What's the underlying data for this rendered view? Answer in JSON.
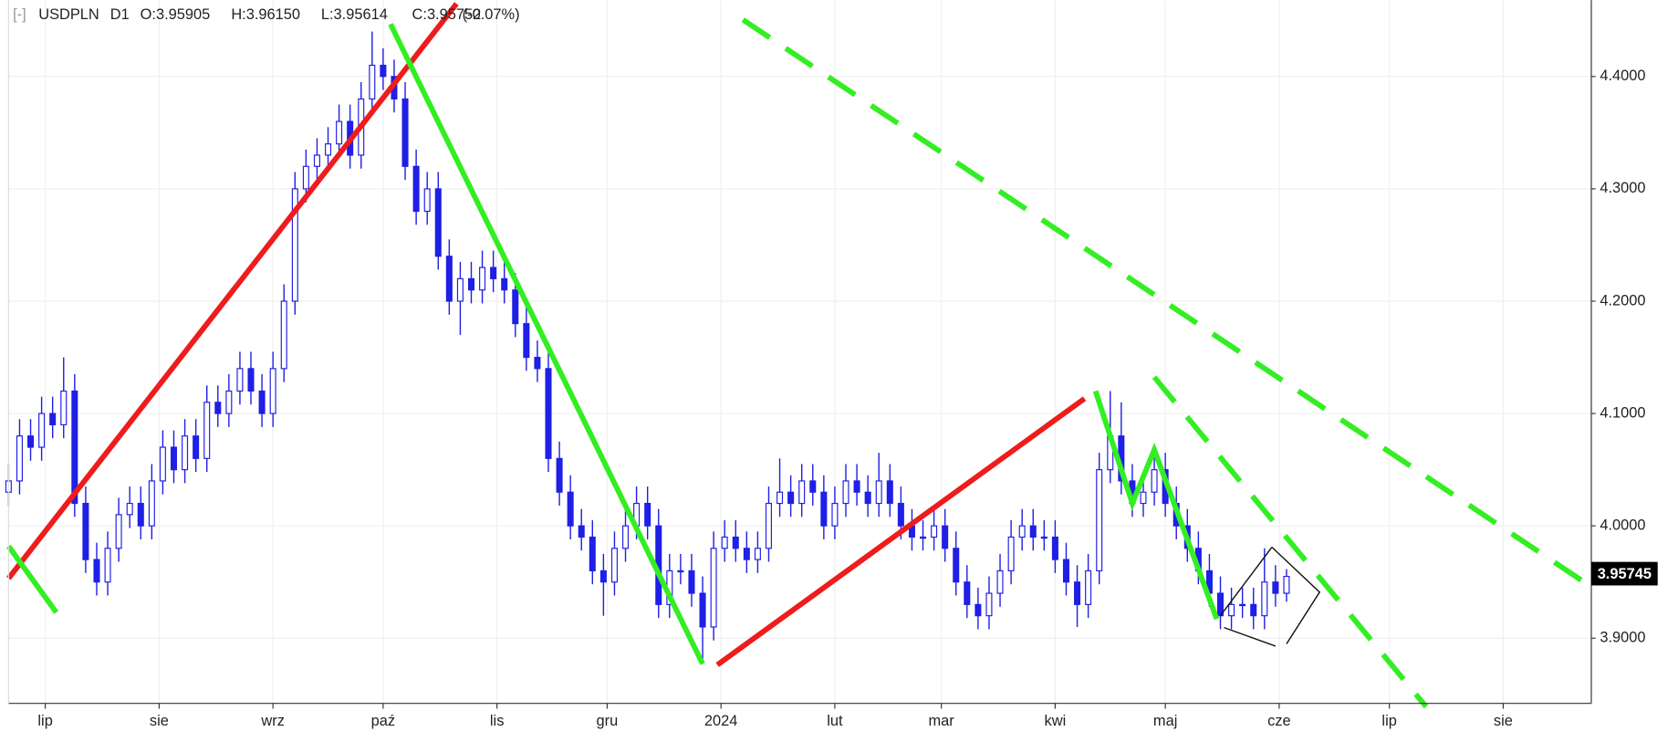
{
  "chart_data": {
    "type": "candlestick",
    "header": {
      "toggle": "[-]",
      "symbol": "USDPLN",
      "timeframe": "D1",
      "ohlc": [
        "O:3.95905",
        "H:3.96150",
        "L:3.95614",
        "C:3.95752"
      ],
      "change": "(-0.07%)"
    },
    "current_price": 3.95745,
    "up_color": "#ffffff",
    "down_color": "#1f1fe6",
    "outline_color": "#1f1fe6",
    "xlim": [
      "2023-06-21",
      "2024-08-25"
    ],
    "xticks": [
      {
        "value": "2023-07-01",
        "label": "lip"
      },
      {
        "value": "2023-08-01",
        "label": "sie"
      },
      {
        "value": "2023-09-01",
        "label": "wrz"
      },
      {
        "value": "2023-10-01",
        "label": "paź"
      },
      {
        "value": "2023-11-01",
        "label": "lis"
      },
      {
        "value": "2023-12-01",
        "label": "gru"
      },
      {
        "value": "2024-01-01",
        "label": "2024"
      },
      {
        "value": "2024-02-01",
        "label": "lut"
      },
      {
        "value": "2024-03-01",
        "label": "mar"
      },
      {
        "value": "2024-04-01",
        "label": "kwi"
      },
      {
        "value": "2024-05-01",
        "label": "maj"
      },
      {
        "value": "2024-06-01",
        "label": "cze"
      },
      {
        "value": "2024-07-01",
        "label": "lip"
      },
      {
        "value": "2024-08-01",
        "label": "sie"
      }
    ],
    "ylim": [
      3.842,
      4.468
    ],
    "yticks": [
      {
        "value": 3.9,
        "label": "3.9000"
      },
      {
        "value": 4.0,
        "label": "4.0000"
      },
      {
        "value": 4.1,
        "label": "4.1000"
      },
      {
        "value": 4.2,
        "label": "4.2000"
      },
      {
        "value": 4.3,
        "label": "4.3000"
      },
      {
        "value": 4.4,
        "label": "4.4000"
      }
    ],
    "grid": true,
    "x": [
      "2023-06-21",
      "2023-06-24",
      "2023-06-27",
      "2023-06-30",
      "2023-07-03",
      "2023-07-06",
      "2023-07-09",
      "2023-07-12",
      "2023-07-15",
      "2023-07-18",
      "2023-07-21",
      "2023-07-24",
      "2023-07-27",
      "2023-07-30",
      "2023-08-02",
      "2023-08-05",
      "2023-08-08",
      "2023-08-11",
      "2023-08-14",
      "2023-08-17",
      "2023-08-20",
      "2023-08-23",
      "2023-08-26",
      "2023-08-29",
      "2023-09-01",
      "2023-09-04",
      "2023-09-07",
      "2023-09-10",
      "2023-09-13",
      "2023-09-16",
      "2023-09-19",
      "2023-09-22",
      "2023-09-25",
      "2023-09-28",
      "2023-10-01",
      "2023-10-04",
      "2023-10-07",
      "2023-10-10",
      "2023-10-13",
      "2023-10-16",
      "2023-10-19",
      "2023-10-22",
      "2023-10-25",
      "2023-10-28",
      "2023-10-31",
      "2023-11-03",
      "2023-11-06",
      "2023-11-09",
      "2023-11-12",
      "2023-11-15",
      "2023-11-18",
      "2023-11-21",
      "2023-11-24",
      "2023-11-27",
      "2023-11-30",
      "2023-12-03",
      "2023-12-06",
      "2023-12-09",
      "2023-12-12",
      "2023-12-15",
      "2023-12-18",
      "2023-12-21",
      "2023-12-24",
      "2023-12-27",
      "2023-12-30",
      "2024-01-02",
      "2024-01-05",
      "2024-01-08",
      "2024-01-11",
      "2024-01-14",
      "2024-01-17",
      "2024-01-20",
      "2024-01-23",
      "2024-01-26",
      "2024-01-29",
      "2024-02-01",
      "2024-02-04",
      "2024-02-07",
      "2024-02-10",
      "2024-02-13",
      "2024-02-16",
      "2024-02-19",
      "2024-02-22",
      "2024-02-25",
      "2024-02-28",
      "2024-03-02",
      "2024-03-05",
      "2024-03-08",
      "2024-03-11",
      "2024-03-14",
      "2024-03-17",
      "2024-03-20",
      "2024-03-23",
      "2024-03-26",
      "2024-03-29",
      "2024-04-01",
      "2024-04-04",
      "2024-04-07",
      "2024-04-10",
      "2024-04-13",
      "2024-04-16",
      "2024-04-19",
      "2024-04-22",
      "2024-04-25",
      "2024-04-28",
      "2024-05-01",
      "2024-05-04",
      "2024-05-07",
      "2024-05-10",
      "2024-05-13",
      "2024-05-16",
      "2024-05-19",
      "2024-05-22",
      "2024-05-25",
      "2024-05-28",
      "2024-05-31",
      "2024-06-03"
    ],
    "open": [
      4.03,
      4.04,
      4.08,
      4.07,
      4.1,
      4.09,
      4.12,
      4.02,
      3.97,
      3.95,
      3.98,
      4.01,
      4.02,
      4.0,
      4.04,
      4.07,
      4.05,
      4.08,
      4.06,
      4.11,
      4.1,
      4.12,
      4.14,
      4.12,
      4.1,
      4.14,
      4.2,
      4.3,
      4.32,
      4.33,
      4.34,
      4.36,
      4.33,
      4.38,
      4.41,
      4.4,
      4.38,
      4.32,
      4.28,
      4.3,
      4.24,
      4.2,
      4.22,
      4.21,
      4.23,
      4.22,
      4.21,
      4.18,
      4.15,
      4.14,
      4.06,
      4.03,
      4.0,
      3.99,
      3.96,
      3.95,
      3.98,
      4.0,
      4.02,
      4.0,
      3.93,
      3.96,
      3.96,
      3.94,
      3.91,
      3.98,
      3.99,
      3.98,
      3.97,
      3.98,
      4.02,
      4.03,
      4.02,
      4.04,
      4.03,
      4.0,
      4.02,
      4.04,
      4.03,
      4.02,
      4.04,
      4.02,
      4.0,
      3.99,
      3.99,
      4.0,
      3.98,
      3.95,
      3.93,
      3.92,
      3.94,
      3.96,
      3.99,
      4.0,
      3.99,
      3.99,
      3.97,
      3.95,
      3.93,
      3.96,
      4.05,
      4.08,
      4.04,
      4.02,
      4.03,
      4.05,
      4.02,
      4.0,
      3.98,
      3.96,
      3.94,
      3.92,
      3.93,
      3.93,
      3.92,
      3.95,
      3.94
    ],
    "high": [
      4.055,
      4.095,
      4.095,
      4.115,
      4.115,
      4.15,
      4.135,
      4.035,
      3.985,
      3.995,
      4.025,
      4.035,
      4.035,
      4.055,
      4.085,
      4.085,
      4.095,
      4.095,
      4.125,
      4.125,
      4.135,
      4.155,
      4.155,
      4.135,
      4.155,
      4.215,
      4.315,
      4.335,
      4.345,
      4.355,
      4.375,
      4.375,
      4.395,
      4.44,
      4.425,
      4.415,
      4.395,
      4.335,
      4.315,
      4.315,
      4.255,
      4.235,
      4.235,
      4.245,
      4.245,
      4.235,
      4.225,
      4.195,
      4.165,
      4.155,
      4.075,
      4.045,
      4.015,
      4.005,
      3.975,
      3.995,
      4.015,
      4.035,
      4.035,
      4.015,
      3.975,
      3.975,
      3.975,
      3.955,
      3.995,
      4.005,
      4.005,
      3.995,
      3.995,
      4.035,
      4.06,
      4.045,
      4.055,
      4.055,
      4.045,
      4.035,
      4.055,
      4.055,
      4.045,
      4.065,
      4.055,
      4.035,
      4.015,
      4.005,
      4.015,
      4.015,
      3.995,
      3.965,
      3.945,
      3.955,
      3.975,
      4.005,
      4.015,
      4.015,
      4.005,
      4.005,
      3.985,
      3.965,
      3.975,
      4.065,
      4.12,
      4.11,
      4.055,
      4.045,
      4.07,
      4.065,
      4.035,
      4.015,
      3.995,
      3.975,
      3.955,
      3.945,
      3.945,
      3.945,
      3.98,
      3.965,
      3.9615
    ],
    "low": [
      4.018,
      4.028,
      4.058,
      4.058,
      4.078,
      4.078,
      4.008,
      3.958,
      3.938,
      3.938,
      3.968,
      3.998,
      3.988,
      3.988,
      4.028,
      4.038,
      4.038,
      4.048,
      4.048,
      4.088,
      4.088,
      4.108,
      4.108,
      4.088,
      4.088,
      4.128,
      4.188,
      4.288,
      4.308,
      4.318,
      4.328,
      4.318,
      4.318,
      4.368,
      4.388,
      4.368,
      4.308,
      4.268,
      4.268,
      4.228,
      4.188,
      4.17,
      4.198,
      4.198,
      4.208,
      4.198,
      4.168,
      4.138,
      4.128,
      4.048,
      4.018,
      3.988,
      3.978,
      3.948,
      3.92,
      3.938,
      3.968,
      3.988,
      3.988,
      3.918,
      3.918,
      3.948,
      3.928,
      3.88,
      3.898,
      3.968,
      3.968,
      3.958,
      3.958,
      3.968,
      4.008,
      4.008,
      4.008,
      4.018,
      3.988,
      3.988,
      4.008,
      4.018,
      4.008,
      4.008,
      4.008,
      3.988,
      3.978,
      3.978,
      3.978,
      3.968,
      3.938,
      3.918,
      3.908,
      3.908,
      3.928,
      3.948,
      3.978,
      3.978,
      3.978,
      3.958,
      3.938,
      3.91,
      3.918,
      3.948,
      4.038,
      4.028,
      4.008,
      4.008,
      4.018,
      4.008,
      3.988,
      3.968,
      3.948,
      3.928,
      3.908,
      3.908,
      3.918,
      3.908,
      3.908,
      3.928,
      3.9325
    ],
    "close": [
      4.04,
      4.08,
      4.07,
      4.1,
      4.09,
      4.12,
      4.02,
      3.97,
      3.95,
      3.98,
      4.01,
      4.02,
      4.0,
      4.04,
      4.07,
      4.05,
      4.08,
      4.06,
      4.11,
      4.1,
      4.12,
      4.14,
      4.12,
      4.1,
      4.14,
      4.2,
      4.3,
      4.32,
      4.33,
      4.34,
      4.36,
      4.33,
      4.38,
      4.41,
      4.4,
      4.38,
      4.32,
      4.28,
      4.3,
      4.24,
      4.2,
      4.22,
      4.21,
      4.23,
      4.22,
      4.21,
      4.18,
      4.15,
      4.14,
      4.06,
      4.03,
      4.0,
      3.99,
      3.96,
      3.95,
      3.98,
      4.0,
      4.02,
      4.0,
      3.93,
      3.96,
      3.96,
      3.94,
      3.91,
      3.98,
      3.99,
      3.98,
      3.97,
      3.98,
      4.02,
      4.03,
      4.02,
      4.04,
      4.03,
      4.0,
      4.02,
      4.04,
      4.03,
      4.02,
      4.04,
      4.02,
      4.0,
      3.99,
      3.99,
      4.0,
      3.98,
      3.95,
      3.93,
      3.92,
      3.94,
      3.96,
      3.99,
      4.0,
      3.99,
      3.99,
      3.97,
      3.95,
      3.93,
      3.96,
      4.05,
      4.08,
      4.04,
      4.02,
      4.03,
      4.05,
      4.02,
      4.0,
      3.98,
      3.96,
      3.94,
      3.92,
      3.93,
      3.93,
      3.92,
      3.95,
      3.94,
      3.955
    ],
    "drawings": [
      {
        "color": "#ee1c1c",
        "dashed": false,
        "x": [
          "2023-06-21",
          "2023-10-21"
        ],
        "y": [
          3.9533,
          4.4648
        ]
      },
      {
        "color": "#33ee22",
        "dashed": false,
        "x": [
          "2023-06-21",
          "2023-07-04"
        ],
        "y": [
          3.9819,
          3.9229
        ]
      },
      {
        "color": "#33ee22",
        "dashed": false,
        "x": [
          "2023-10-03",
          "2023-12-27"
        ],
        "y": [
          4.4467,
          3.8771
        ]
      },
      {
        "color": "#ee1c1c",
        "dashed": false,
        "x": [
          "2023-12-31",
          "2024-04-09"
        ],
        "y": [
          3.8762,
          4.1133
        ]
      },
      {
        "color": "#33ee22",
        "dashed": false,
        "x": [
          "2024-04-12",
          "2024-04-22",
          "2024-04-28",
          "2024-05-15"
        ],
        "y": [
          4.12,
          4.02,
          4.0676,
          3.9171
        ]
      },
      {
        "color": "#33ee22",
        "dashed": true,
        "x": [
          "2024-01-07",
          "2024-08-25"
        ],
        "y": [
          4.4505,
          3.9457
        ]
      },
      {
        "color": "#33ee22",
        "dashed": true,
        "x": [
          "2024-04-28",
          "2024-07-11"
        ],
        "y": [
          4.1324,
          3.839
        ]
      },
      {
        "color": "#111111",
        "dashed": false,
        "thin": true,
        "x": [
          "2024-05-16",
          "2024-05-30"
        ],
        "y": [
          3.92,
          3.981
        ]
      },
      {
        "color": "#111111",
        "dashed": false,
        "thin": true,
        "x": [
          "2024-05-30",
          "2024-06-12",
          "2024-06-03"
        ],
        "y": [
          3.981,
          3.941,
          3.895
        ]
      },
      {
        "color": "#111111",
        "dashed": false,
        "thin": true,
        "x": [
          "2024-05-17",
          "2024-05-31"
        ],
        "y": [
          3.9095,
          3.893
        ]
      }
    ]
  }
}
